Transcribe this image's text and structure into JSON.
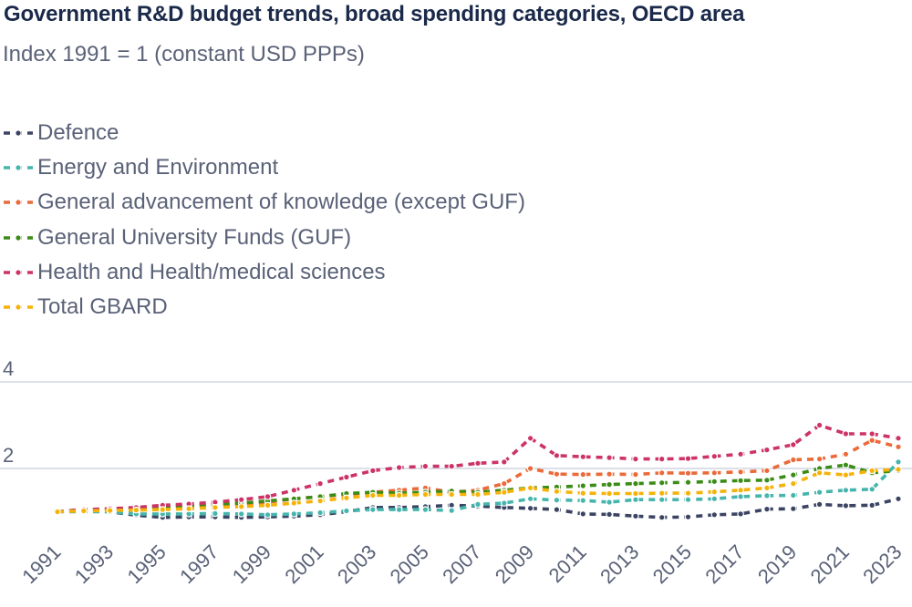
{
  "title": "Government R&D budget trends, broad spending categories, OECD area",
  "subtitle": "Index 1991 = 1 (constant USD PPPs)",
  "chart_data": {
    "type": "line",
    "x": [
      1991,
      1992,
      1993,
      1994,
      1995,
      1996,
      1997,
      1998,
      1999,
      2000,
      2001,
      2002,
      2003,
      2004,
      2005,
      2006,
      2007,
      2008,
      2009,
      2010,
      2011,
      2012,
      2013,
      2014,
      2015,
      2016,
      2017,
      2018,
      2019,
      2020,
      2021,
      2022,
      2023
    ],
    "x_tick_labels": [
      "1991",
      "1993",
      "1995",
      "1997",
      "1999",
      "2001",
      "2003",
      "2005",
      "2007",
      "2009",
      "2011",
      "2013",
      "2015",
      "2017",
      "2019",
      "2021",
      "2023"
    ],
    "y_ticks": [
      "2",
      "4"
    ],
    "ylim": [
      0,
      4
    ],
    "grid": "horizontal",
    "legend_position": "top-left",
    "series": [
      {
        "name": "Defence",
        "color": "#3b4463",
        "values": [
          1.0,
          1.02,
          1.0,
          0.92,
          0.87,
          0.88,
          0.88,
          0.87,
          0.88,
          0.9,
          0.93,
          1.0,
          1.1,
          1.1,
          1.12,
          1.15,
          1.13,
          1.1,
          1.08,
          1.05,
          0.95,
          0.94,
          0.9,
          0.87,
          0.88,
          0.93,
          0.95,
          1.06,
          1.07,
          1.17,
          1.14,
          1.15,
          1.3
        ]
      },
      {
        "name": "Energy and Environment",
        "color": "#46b5ad",
        "values": [
          1.0,
          1.0,
          1.0,
          0.95,
          0.95,
          0.95,
          0.96,
          0.95,
          0.93,
          0.95,
          0.98,
          1.02,
          1.05,
          1.05,
          1.05,
          1.03,
          1.17,
          1.2,
          1.3,
          1.27,
          1.26,
          1.22,
          1.28,
          1.28,
          1.28,
          1.3,
          1.35,
          1.37,
          1.38,
          1.45,
          1.5,
          1.52,
          2.15
        ]
      },
      {
        "name": "General advancement of knowledge (except GUF)",
        "color": "#eb6a3a",
        "values": [
          1.0,
          1.05,
          1.06,
          1.07,
          1.1,
          1.12,
          1.15,
          1.18,
          1.22,
          1.3,
          1.35,
          1.4,
          1.45,
          1.5,
          1.55,
          1.45,
          1.5,
          1.65,
          2.0,
          1.87,
          1.86,
          1.87,
          1.86,
          1.9,
          1.89,
          1.9,
          1.92,
          1.95,
          2.2,
          2.22,
          2.33,
          2.65,
          2.5
        ]
      },
      {
        "name": "General University Funds (GUF)",
        "color": "#3b8c17",
        "values": [
          1.0,
          1.05,
          1.06,
          1.07,
          1.12,
          1.15,
          1.18,
          1.2,
          1.25,
          1.3,
          1.35,
          1.42,
          1.45,
          1.43,
          1.45,
          1.48,
          1.45,
          1.5,
          1.55,
          1.57,
          1.6,
          1.63,
          1.65,
          1.67,
          1.68,
          1.7,
          1.72,
          1.73,
          1.85,
          2.0,
          2.08,
          1.9,
          1.95
        ]
      },
      {
        "name": "Health and Health/medical sciences",
        "color": "#cc3366",
        "values": [
          1.0,
          1.05,
          1.07,
          1.1,
          1.15,
          1.18,
          1.22,
          1.28,
          1.35,
          1.5,
          1.65,
          1.8,
          1.95,
          2.02,
          2.05,
          2.05,
          2.12,
          2.15,
          2.7,
          2.3,
          2.27,
          2.25,
          2.22,
          2.22,
          2.23,
          2.28,
          2.33,
          2.43,
          2.55,
          3.0,
          2.8,
          2.8,
          2.7
        ]
      },
      {
        "name": "Total GBARD",
        "color": "#f5b30a",
        "values": [
          1.0,
          1.02,
          1.03,
          1.04,
          1.05,
          1.07,
          1.1,
          1.12,
          1.15,
          1.2,
          1.25,
          1.32,
          1.38,
          1.38,
          1.4,
          1.4,
          1.4,
          1.45,
          1.55,
          1.47,
          1.43,
          1.42,
          1.42,
          1.43,
          1.43,
          1.46,
          1.5,
          1.55,
          1.65,
          1.9,
          1.85,
          1.95,
          1.98
        ]
      }
    ]
  }
}
